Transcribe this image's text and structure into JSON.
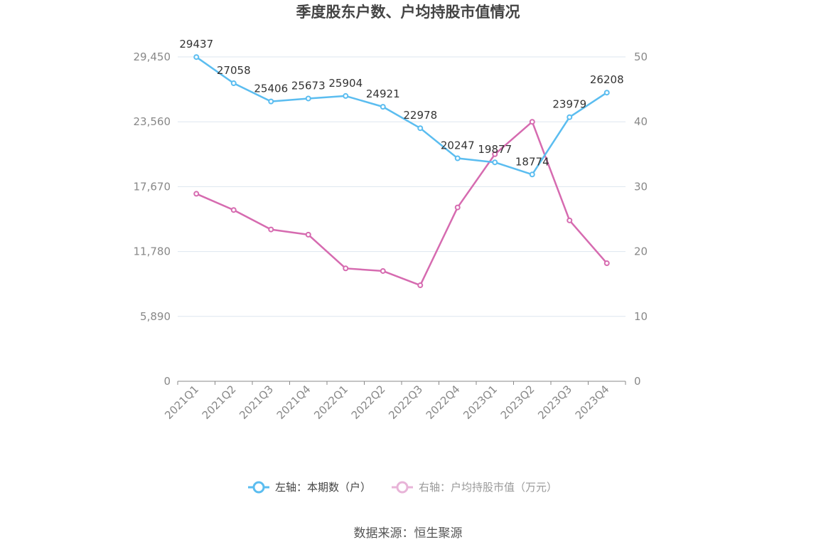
{
  "chart_data": {
    "type": "line",
    "title": "季度股东户数、户均持股市值情况",
    "categories": [
      "2021Q1",
      "2021Q2",
      "2021Q3",
      "2021Q4",
      "2022Q1",
      "2022Q2",
      "2022Q3",
      "2022Q4",
      "2023Q1",
      "2023Q2",
      "2023Q3",
      "2023Q4"
    ],
    "left_axis": {
      "ticks": [
        "0",
        "5,890",
        "11,780",
        "17,670",
        "23,560",
        "29,450"
      ],
      "min": 0,
      "max": 29450
    },
    "right_axis": {
      "ticks": [
        "0",
        "10",
        "20",
        "30",
        "40",
        "50"
      ],
      "min": 0,
      "max": 50
    },
    "grid": true,
    "legend_position": "bottom",
    "series": [
      {
        "name": "左轴：本期数（户）",
        "axis": "left",
        "color": "#5bbdf0",
        "values": [
          29437,
          27058,
          25406,
          25673,
          25904,
          24921,
          22978,
          20247,
          19877,
          18774,
          23979,
          26208
        ],
        "labels": [
          "29437",
          "27058",
          "25406",
          "25673",
          "25904",
          "24921",
          "22978",
          "20247",
          "19877",
          "18774",
          "23979",
          "26208"
        ]
      },
      {
        "name": "右轴：户均持股市值（万元）",
        "axis": "right",
        "color": "#d66bb0",
        "values": [
          28.9,
          26.4,
          23.4,
          22.6,
          17.4,
          17.0,
          14.8,
          26.8,
          35.0,
          40.0,
          24.8,
          18.2
        ]
      }
    ]
  },
  "source": "数据来源：恒生聚源"
}
